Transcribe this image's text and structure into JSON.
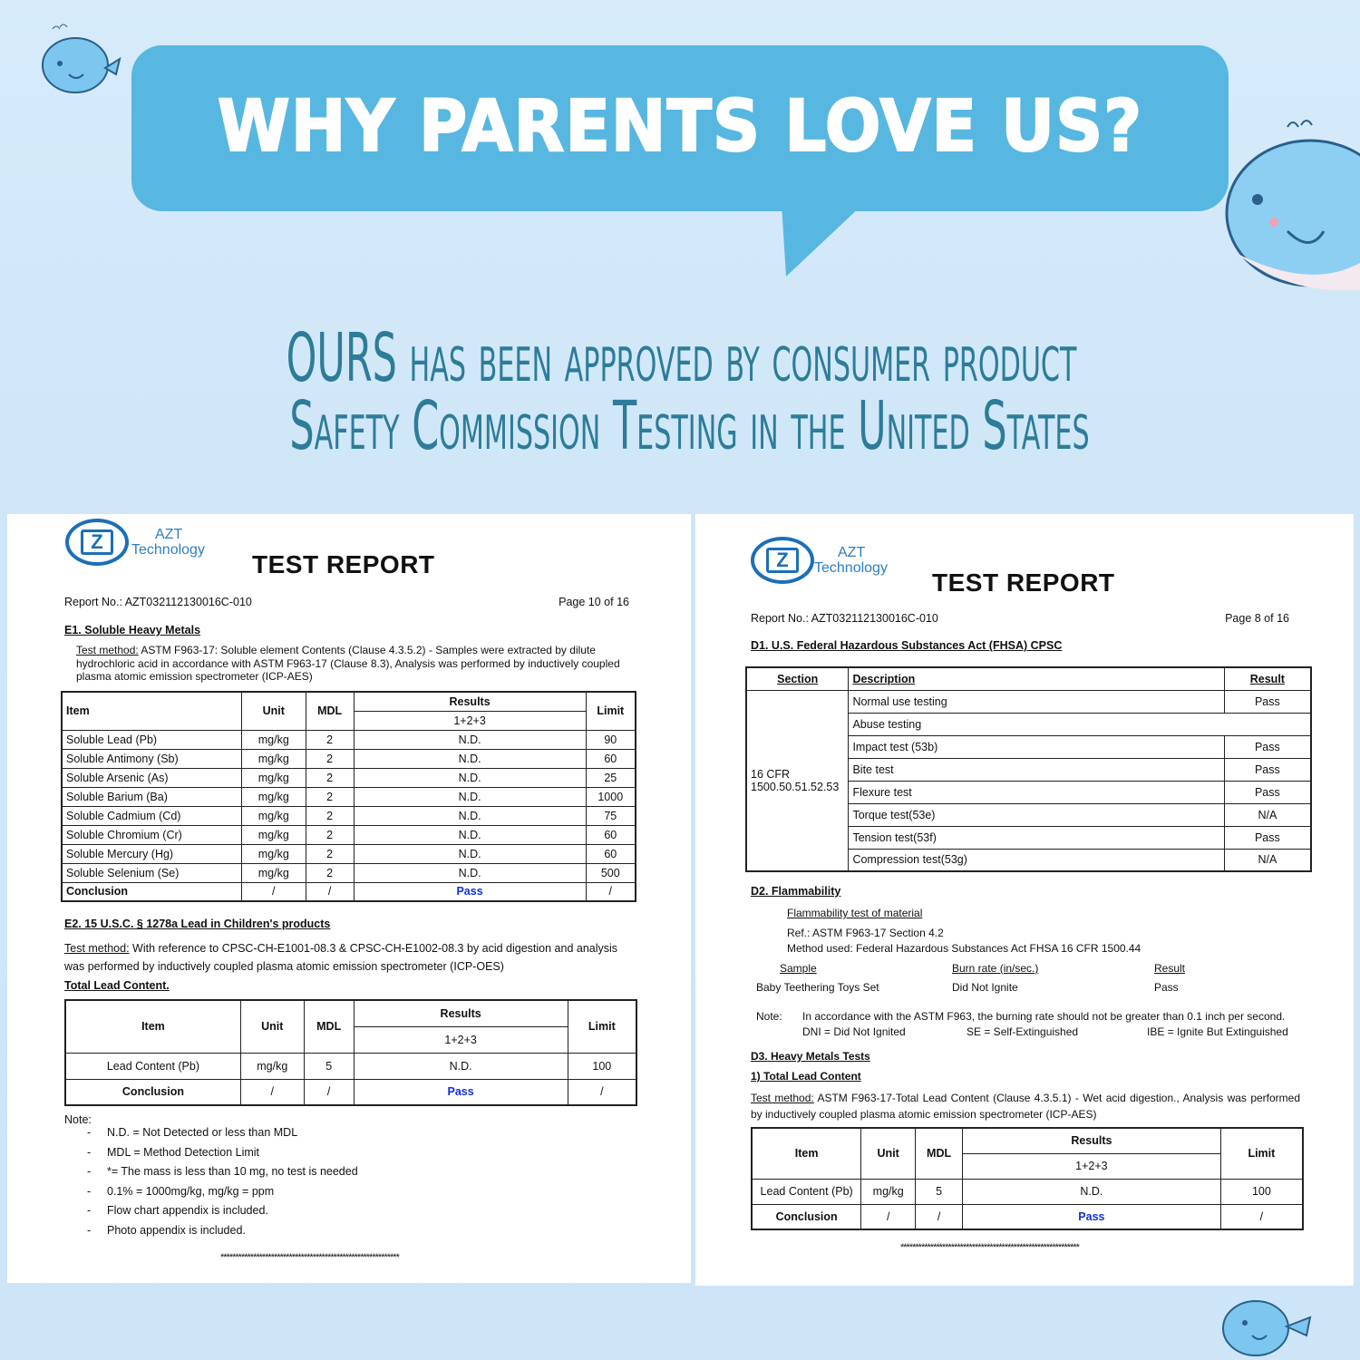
{
  "banner": {
    "headline": "WHY PARENTS LOVE US?",
    "line1": "OURS has been approved by consumer product",
    "line2": "Safety Commission Testing in the United States",
    "bubble_color": "#58b7e1",
    "text_color": "#2d7c99"
  },
  "left_report": {
    "brand": [
      "AZT",
      "Technology"
    ],
    "title": "TEST REPORT",
    "report_no": "Report No.: AZT032112130016C-010",
    "page": "Page 10 of 16",
    "e1_heading": "E1. Soluble Heavy Metals",
    "e1_method_label": "Test method:",
    "e1_method": " ASTM F963-17: Soluble element Contents (Clause 4.3.5.2) - Samples were extracted by dilute hydrochloric acid in accordance with ASTM F963-17 (Clause 8.3), Analysis was performed by inductively coupled plasma atomic emission spectrometer (ICP-AES)",
    "table1": {
      "headers": [
        "Item",
        "Unit",
        "MDL",
        "Results",
        "1+2+3",
        "Limit"
      ],
      "rows": [
        [
          "Soluble Lead (Pb)",
          "mg/kg",
          "2",
          "N.D.",
          "90"
        ],
        [
          "Soluble Antimony (Sb)",
          "mg/kg",
          "2",
          "N.D.",
          "60"
        ],
        [
          "Soluble Arsenic (As)",
          "mg/kg",
          "2",
          "N.D.",
          "25"
        ],
        [
          "Soluble Barium (Ba)",
          "mg/kg",
          "2",
          "N.D.",
          "1000"
        ],
        [
          "Soluble Cadmium (Cd)",
          "mg/kg",
          "2",
          "N.D.",
          "75"
        ],
        [
          "Soluble Chromium (Cr)",
          "mg/kg",
          "2",
          "N.D.",
          "60"
        ],
        [
          "Soluble Mercury (Hg)",
          "mg/kg",
          "2",
          "N.D.",
          "60"
        ],
        [
          "Soluble Selenium (Se)",
          "mg/kg",
          "2",
          "N.D.",
          "500"
        ]
      ],
      "conclusion": [
        "Conclusion",
        "/",
        "/",
        "Pass",
        "/"
      ]
    },
    "e2_heading": "E2. 15 U.S.C. § 1278a Lead in Children's products",
    "e2_method_label": "Test method:",
    "e2_method": " With reference to CPSC-CH-E1001-08.3 & CPSC-CH-E1002-08.3 by acid digestion and analysis was performed by inductively coupled plasma atomic emission spectrometer (ICP-OES)",
    "total_lead": "Total Lead Content.",
    "table2": {
      "headers": [
        "Item",
        "Unit",
        "MDL",
        "Results",
        "1+2+3",
        "Limit"
      ],
      "rows": [
        [
          "Lead Content (Pb)",
          "mg/kg",
          "5",
          "N.D.",
          "100"
        ]
      ],
      "conclusion": [
        "Conclusion",
        "/",
        "/",
        "Pass",
        "/"
      ]
    },
    "note_label": "Note:",
    "notes": [
      "N.D. = Not Detected or less than MDL",
      "MDL = Method Detection Limit",
      "*= The mass is less than 10 mg, no test is needed",
      "0.1% = 1000mg/kg, mg/kg = ppm",
      "Flow chart appendix is included.",
      "Photo appendix is included."
    ],
    "end_line": "************************************************************"
  },
  "right_report": {
    "brand": [
      "AZT",
      "Technology"
    ],
    "title": "TEST REPORT",
    "report_no": "Report No.: AZT032112130016C-010",
    "page": "Page 8 of 16",
    "d1_heading": "D1. U.S. Federal Hazardous Substances Act (FHSA) CPSC",
    "table": {
      "headers": [
        "Section",
        "Description",
        "Result"
      ],
      "section": "16 CFR 1500.50.51.52.53",
      "rows": [
        [
          "Normal use testing",
          "Pass"
        ],
        [
          "Abuse testing",
          ""
        ],
        [
          "Impact test (53b)",
          "Pass"
        ],
        [
          "Bite test",
          "Pass"
        ],
        [
          "Flexure test",
          "Pass"
        ],
        [
          "Torque test(53e)",
          "N/A"
        ],
        [
          "Tension test(53f)",
          "Pass"
        ],
        [
          "Compression test(53g)",
          "N/A"
        ]
      ]
    },
    "d2_heading": "D2. Flammability",
    "flam_title": "Flammability test of material",
    "ref": "Ref.: ASTM F963-17 Section 4.2",
    "method": "Method used: Federal Hazardous Substances Act FHSA 16 CFR 1500.44",
    "flam_headers": [
      "Sample",
      "Burn rate (in/sec.)",
      "Result"
    ],
    "flam_row": [
      "Baby Teethering Toys Set",
      "Did Not Ignite",
      "Pass"
    ],
    "note_label": "Note:",
    "note": "In accordance with the ASTM F963, the burning rate should not be greater than 0.1 inch per second.",
    "abbr": [
      "DNI = Did Not Ignited",
      "SE = Self-Extinguished",
      "IBE = Ignite But Extinguished"
    ],
    "d3_heading": "D3. Heavy Metals Tests",
    "d3_sub": "1) Total Lead Content",
    "d3_method_label": "Test method:",
    "d3_method": " ASTM F963-17-Total Lead Content (Clause 4.3.5.1) - Wet acid digestion., Analysis was performed by inductively coupled plasma atomic emission spectrometer (ICP-AES)",
    "table2": {
      "headers": [
        "Item",
        "Unit",
        "MDL",
        "Results",
        "1+2+3",
        "Limit"
      ],
      "rows": [
        [
          "Lead Content (Pb)",
          "mg/kg",
          "5",
          "N.D.",
          "100"
        ]
      ],
      "conclusion": [
        "Conclusion",
        "/",
        "/",
        "Pass",
        "/"
      ]
    },
    "end_line": "************************************************************"
  }
}
